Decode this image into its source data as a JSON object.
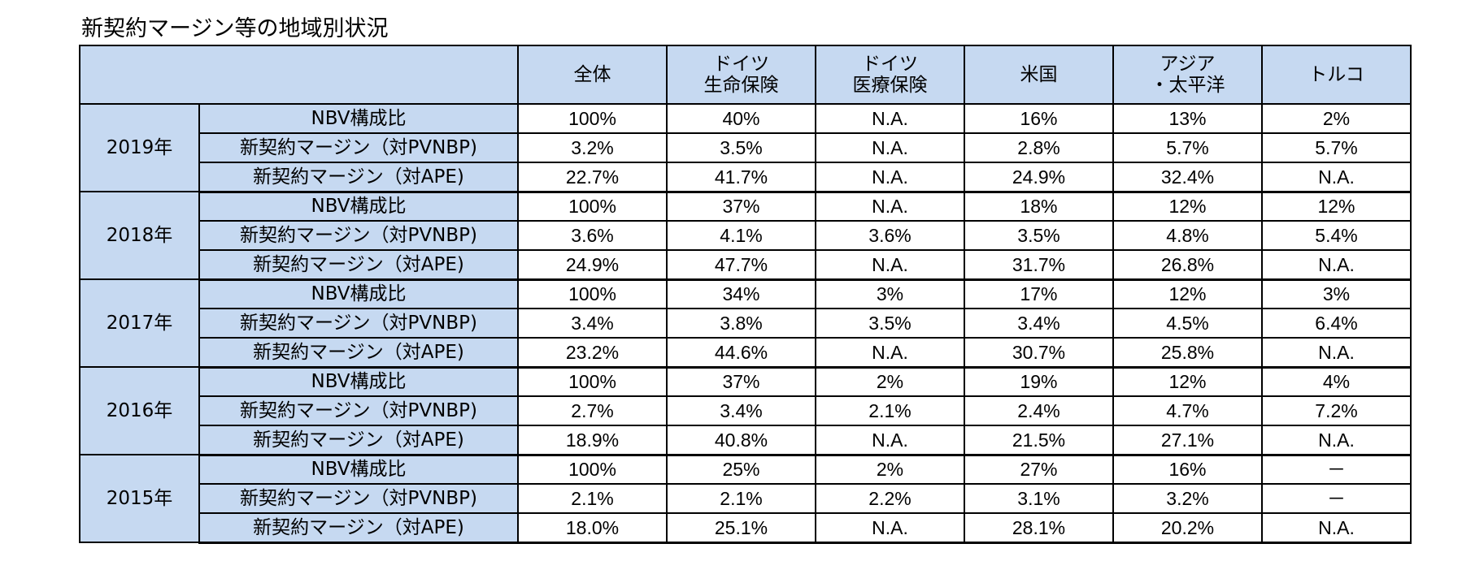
{
  "title": "新契約マージン等の地域別状況",
  "header": {
    "columns": [
      [
        "全体"
      ],
      [
        "ドイツ",
        "生命保険"
      ],
      [
        "ドイツ",
        "医療保険"
      ],
      [
        "米国"
      ],
      [
        "アジア",
        "・太平洋"
      ],
      [
        "トルコ"
      ]
    ]
  },
  "metrics": [
    "NBV構成比",
    "新契約マージン（対PVNBP)",
    "新契約マージン（対APE)"
  ],
  "groups": [
    {
      "year": "2019年",
      "rows": [
        [
          "100%",
          "40%",
          "N.A.",
          "16%",
          "13%",
          "2%"
        ],
        [
          "3.2%",
          "3.5%",
          "N.A.",
          "2.8%",
          "5.7%",
          "5.7%"
        ],
        [
          "22.7%",
          "41.7%",
          "N.A.",
          "24.9%",
          "32.4%",
          "N.A."
        ]
      ]
    },
    {
      "year": "2018年",
      "rows": [
        [
          "100%",
          "37%",
          "N.A.",
          "18%",
          "12%",
          "12%"
        ],
        [
          "3.6%",
          "4.1%",
          "3.6%",
          "3.5%",
          "4.8%",
          "5.4%"
        ],
        [
          "24.9%",
          "47.7%",
          "N.A.",
          "31.7%",
          "26.8%",
          "N.A."
        ]
      ]
    },
    {
      "year": "2017年",
      "rows": [
        [
          "100%",
          "34%",
          "3%",
          "17%",
          "12%",
          "3%"
        ],
        [
          "3.4%",
          "3.8%",
          "3.5%",
          "3.4%",
          "4.5%",
          "6.4%"
        ],
        [
          "23.2%",
          "44.6%",
          "N.A.",
          "30.7%",
          "25.8%",
          "N.A."
        ]
      ]
    },
    {
      "year": "2016年",
      "rows": [
        [
          "100%",
          "37%",
          "2%",
          "19%",
          "12%",
          "4%"
        ],
        [
          "2.7%",
          "3.4%",
          "2.1%",
          "2.4%",
          "4.7%",
          "7.2%"
        ],
        [
          "18.9%",
          "40.8%",
          "N.A.",
          "21.5%",
          "27.1%",
          "N.A."
        ]
      ]
    },
    {
      "year": "2015年",
      "rows": [
        [
          "100%",
          "25%",
          "2%",
          "27%",
          "16%",
          "－"
        ],
        [
          "2.1%",
          "2.1%",
          "2.2%",
          "3.1%",
          "3.2%",
          "－"
        ],
        [
          "18.0%",
          "25.1%",
          "N.A.",
          "28.1%",
          "20.2%",
          "N.A."
        ]
      ]
    }
  ],
  "colors": {
    "label_fill": "#c6d9f1",
    "value_fill": "#ffffff",
    "border": "#000000"
  }
}
